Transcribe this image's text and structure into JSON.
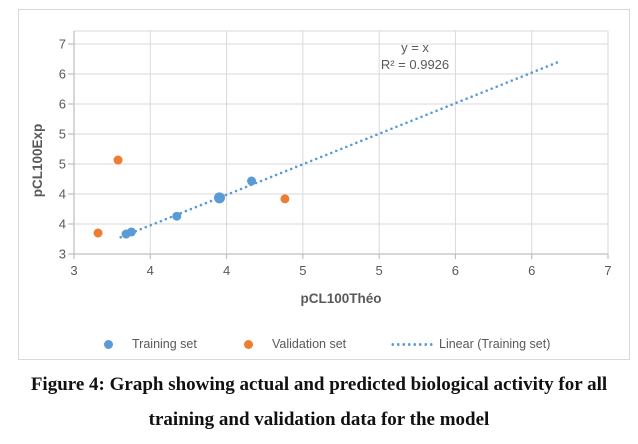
{
  "chart_data": {
    "type": "scatter",
    "xlabel": "pCL100Théo",
    "ylabel": "pCL100Exp",
    "xlim": [
      3,
      7
    ],
    "ylim": [
      3,
      7
    ],
    "grid": true,
    "legend_position": "bottom",
    "x_tick_labels": [
      "3",
      "4",
      "4",
      "5",
      "5",
      "6",
      "6",
      "7"
    ],
    "y_tick_labels": [
      "7",
      "6",
      "6",
      "5",
      "5",
      "4",
      "4",
      "3"
    ],
    "series": [
      {
        "name": "Training set",
        "color": "#5B9BD5",
        "marker": "circle",
        "points": [
          {
            "x": 3.39,
            "y": 3.38
          },
          {
            "x": 3.43,
            "y": 3.42
          },
          {
            "x": 3.77,
            "y": 3.72
          },
          {
            "x": 4.09,
            "y": 4.07,
            "large": true
          },
          {
            "x": 4.33,
            "y": 4.39
          }
        ]
      },
      {
        "name": "Validation set",
        "color": "#ED7D31",
        "marker": "circle",
        "points": [
          {
            "x": 3.18,
            "y": 3.4
          },
          {
            "x": 3.33,
            "y": 4.79
          },
          {
            "x": 4.58,
            "y": 4.05
          }
        ]
      }
    ],
    "trendline": {
      "name": "Linear (Training set)",
      "color": "#5B9BD5",
      "style": "dotted",
      "x1": 3.35,
      "y1": 3.32,
      "x2": 6.65,
      "y2": 6.68,
      "equation_label": "y = x",
      "r2_label": "R² = 0.9926",
      "r_squared": 0.9926
    },
    "colors": {
      "tick_text": "#595959",
      "gridline": "#D9D9D9",
      "axis_line": "#BFBFBF"
    }
  },
  "legend": {
    "item1_label": "Training set",
    "item2_label": "Validation set",
    "item3_label": "Linear (Training set)"
  },
  "caption": {
    "line1": "Figure 4: Graph showing actual and predicted biological activity for all",
    "line2": "training and validation data for the model"
  }
}
